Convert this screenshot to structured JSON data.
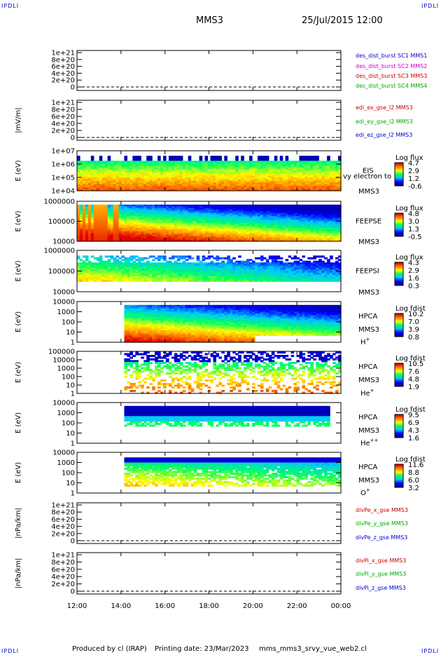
{
  "header": {
    "corner_tl": "IPDLI",
    "corner_tr": "IPDLI",
    "corner_bl": "IPDLI",
    "corner_br": "IPDLI",
    "spacecraft": "MMS3",
    "datetime": "25/Jul/2015 12:00"
  },
  "footer": {
    "produced_by": "Produced by cl (IRAP)",
    "printing_date": "Printing date: 23/Mar/2023",
    "script": "mms_mms3_srvy_vue_web2.cl"
  },
  "colors": {
    "series": [
      "#0000cc",
      "#cc00cc",
      "#cc0000",
      "#00aa00"
    ],
    "colormap": [
      "#00009c",
      "#0000ff",
      "#00c8ff",
      "#00ff64",
      "#ffff00",
      "#ff8000",
      "#e00000"
    ]
  },
  "chart_data": [
    {
      "type": "line",
      "ylabel": "",
      "yticks": [
        "1e+21",
        "8e+20",
        "6e+20",
        "4e+20",
        "2e+20",
        "0"
      ],
      "legend": [
        {
          "text": "des_dist_burst SC1 MMS1",
          "color": "#0000cc"
        },
        {
          "text": "des_dist_burst SC2 MMS2",
          "color": "#cc00cc"
        },
        {
          "text": "des_dist_burst SC3 MMS3",
          "color": "#cc0000"
        },
        {
          "text": "des_dist_burst SC4 MMS4",
          "color": "#00aa00"
        }
      ]
    },
    {
      "type": "line",
      "ylabel": "|mV/m|",
      "yticks": [
        "1e+21",
        "8e+20",
        "6e+20",
        "4e+20",
        "2e+20",
        "0"
      ],
      "legend": [
        {
          "text": "edi_ex_gse_l2 MMS3",
          "color": "#cc0000"
        },
        {
          "text": "edi_ey_gse_l2 MMS3",
          "color": "#00aa00"
        },
        {
          "text": "edi_ez_gse_l2 MMS3",
          "color": "#0000cc"
        }
      ]
    },
    {
      "type": "heatmap",
      "ylabel": "E (eV)",
      "yticks": [
        "1e+07",
        "1e+06",
        "1e+05",
        "1e+04"
      ],
      "instrument": [
        "EIS",
        "MMS3"
      ],
      "overlay_text": "vy electron to",
      "colorbar": {
        "title": "Log flux",
        "ticks": [
          "4.7",
          "2.9",
          "1.2",
          "-0.6"
        ]
      }
    },
    {
      "type": "heatmap",
      "ylabel": "E (eV)",
      "yticks": [
        "1000000",
        "100000",
        "10000"
      ],
      "instrument": [
        "FEEPSE",
        "MMS3"
      ],
      "colorbar": {
        "title": "Log flux",
        "ticks": [
          "4.8",
          "3.0",
          "1.3",
          "-0.5"
        ]
      }
    },
    {
      "type": "heatmap",
      "ylabel": "E (eV)",
      "yticks": [
        "1000000",
        "100000",
        "10000"
      ],
      "instrument": [
        "FEEPSI",
        "MMS3"
      ],
      "colorbar": {
        "title": "Log flux",
        "ticks": [
          "4.3",
          "2.9",
          "1.6",
          "0.3"
        ]
      }
    },
    {
      "type": "heatmap",
      "ylabel": "E (eV)",
      "yticks": [
        "10000",
        "1000",
        "100",
        "10",
        "1"
      ],
      "instrument": [
        "HPCA",
        "MMS3",
        "H",
        "+"
      ],
      "colorbar": {
        "title": "Log fdist",
        "ticks": [
          "10.2",
          "7.0",
          "3.9",
          "0.8"
        ]
      }
    },
    {
      "type": "heatmap",
      "ylabel": "E (eV)",
      "yticks": [
        "100000",
        "10000",
        "1000",
        "100",
        "10",
        "1"
      ],
      "instrument": [
        "HPCA",
        "MMS3",
        "He",
        "+"
      ],
      "colorbar": {
        "title": "Log fdist",
        "ticks": [
          "10.5",
          "7.6",
          "4.8",
          "1.9"
        ]
      }
    },
    {
      "type": "heatmap",
      "ylabel": "E (eV)",
      "yticks": [
        "10000",
        "1000",
        "100",
        "10",
        "1"
      ],
      "instrument": [
        "HPCA",
        "MMS3",
        "He",
        "++"
      ],
      "colorbar": {
        "title": "Log fdist",
        "ticks": [
          "9.5",
          "6.9",
          "4.3",
          "1.6"
        ]
      }
    },
    {
      "type": "heatmap",
      "ylabel": "E (eV)",
      "yticks": [
        "10000",
        "1000",
        "100",
        "10",
        "1"
      ],
      "instrument": [
        "HPCA",
        "MMS3",
        "O",
        "+"
      ],
      "colorbar": {
        "title": "Log fdist",
        "ticks": [
          "11.6",
          "8.8",
          "6.0",
          "3.2"
        ]
      }
    },
    {
      "type": "line",
      "ylabel": "|nPa/km|",
      "yticks": [
        "1e+21",
        "8e+20",
        "6e+20",
        "4e+20",
        "2e+20",
        "0"
      ],
      "legend": [
        {
          "text": "divPe_x_gse MMS3",
          "color": "#cc0000"
        },
        {
          "text": "divPe_y_gse MMS3",
          "color": "#00aa00"
        },
        {
          "text": "divPe_z_gse MMS3",
          "color": "#0000cc"
        }
      ]
    },
    {
      "type": "line",
      "ylabel": "|nPa/km|",
      "yticks": [
        "1e+21",
        "8e+20",
        "6e+20",
        "4e+20",
        "2e+20",
        "0"
      ],
      "legend": [
        {
          "text": "divPi_x_gse MMS3",
          "color": "#cc0000"
        },
        {
          "text": "divPi_y_gse MMS3",
          "color": "#00aa00"
        },
        {
          "text": "divPi_z_gse MMS3",
          "color": "#0000cc"
        }
      ]
    }
  ],
  "time_axis": {
    "ticks": [
      "12:00",
      "14:00",
      "16:00",
      "18:00",
      "20:00",
      "22:00",
      "00:00"
    ]
  }
}
